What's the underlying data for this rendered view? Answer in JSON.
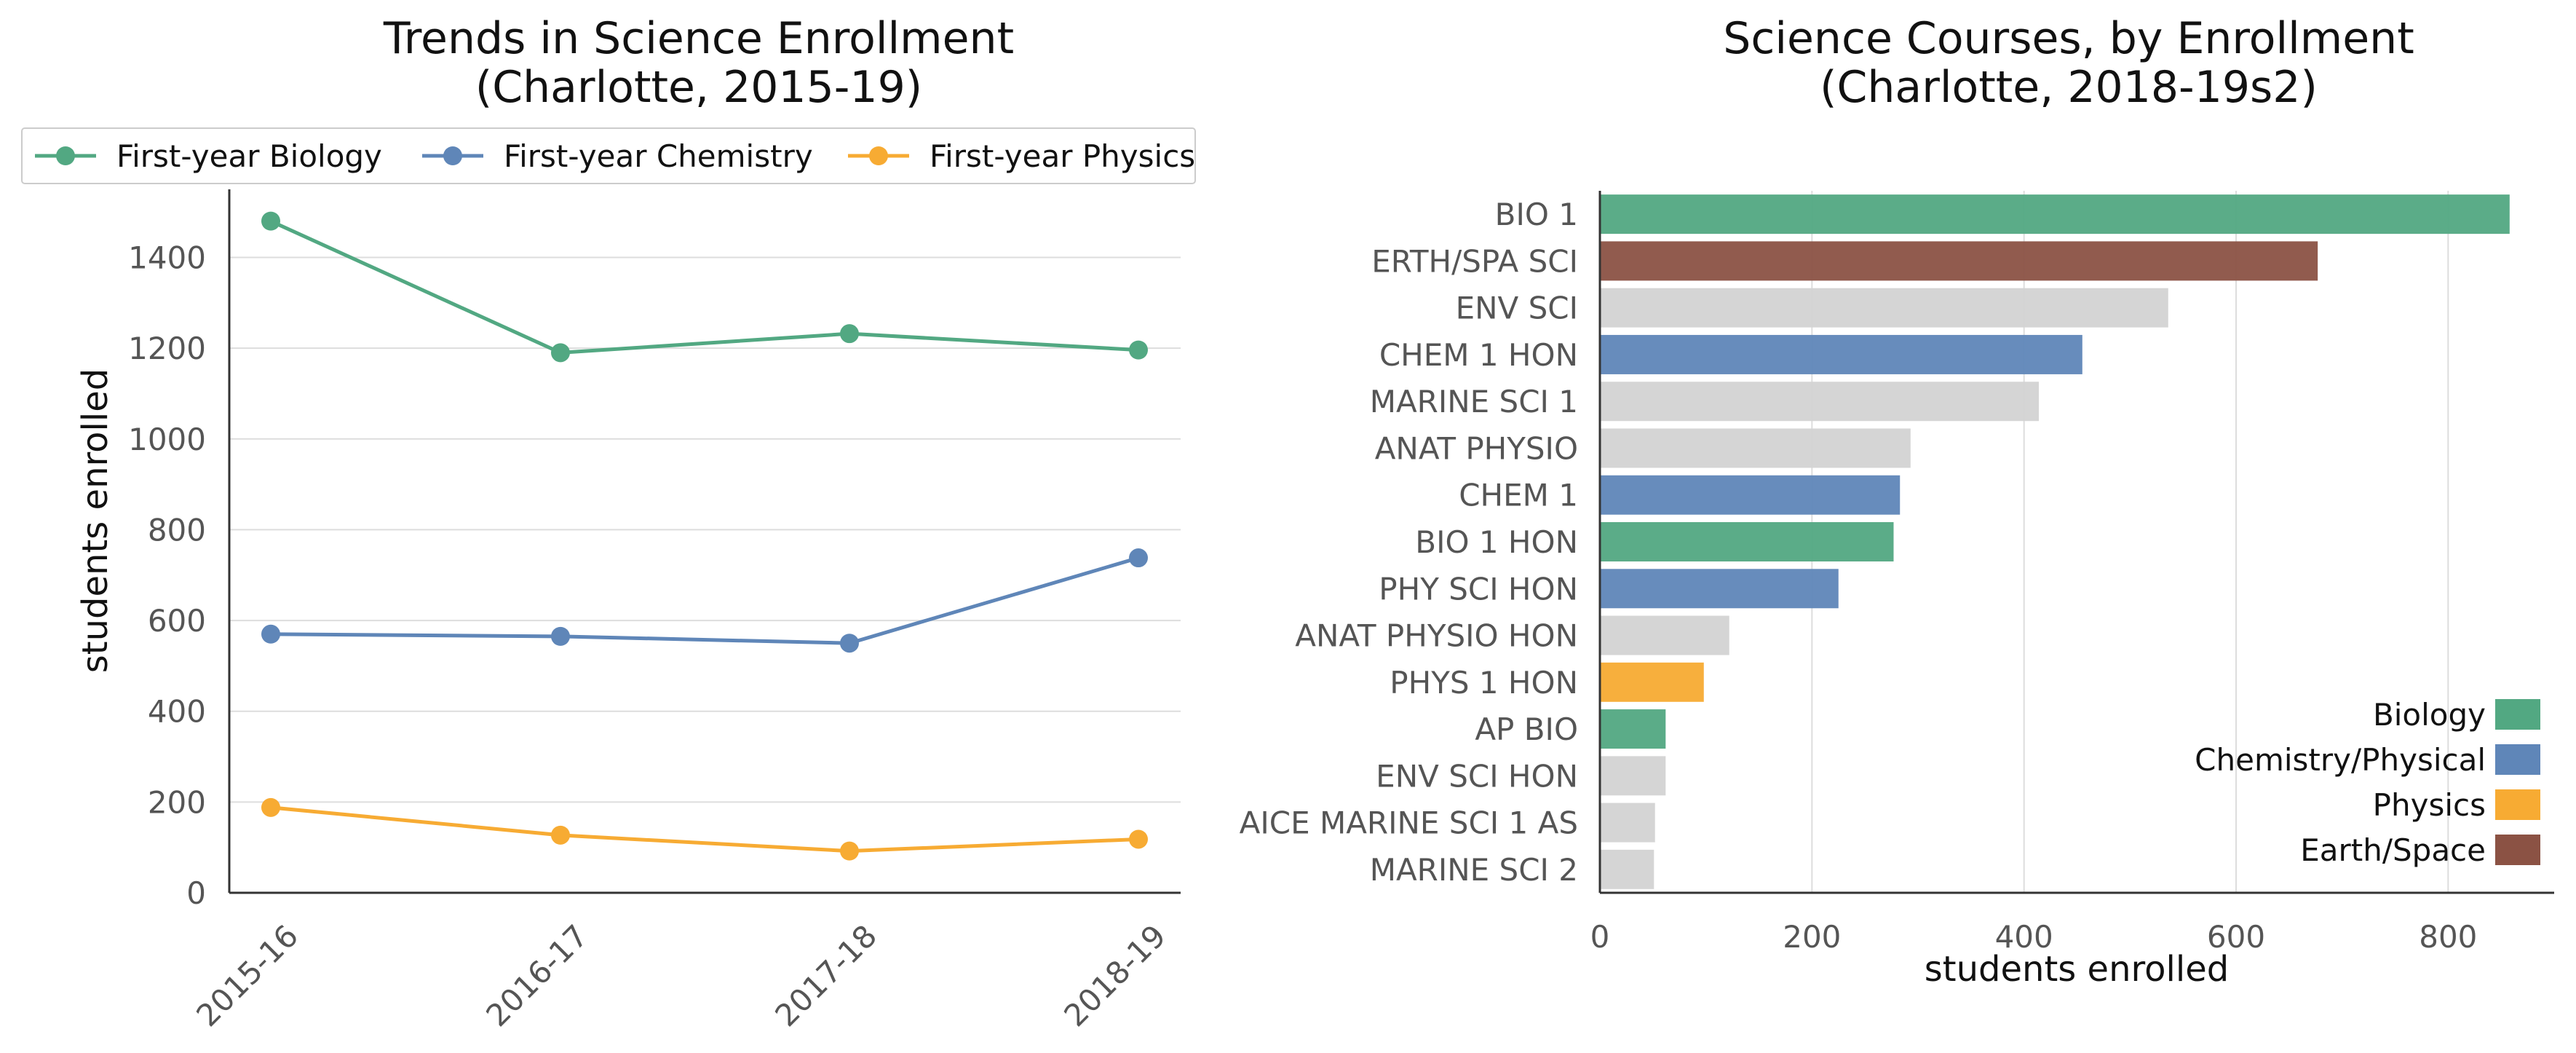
{
  "colors": {
    "biology": "#52a882",
    "chemistry": "#5f86b8",
    "physics": "#f7ab33",
    "earth": "#8b5244",
    "other": "#d3d3d3"
  },
  "chart_data": [
    {
      "type": "line",
      "title_line1": "Trends in Science Enrollment",
      "title_line2": "(Charlotte, 2015-19)",
      "xlabel": "",
      "ylabel": "students enrolled",
      "categories": [
        "2015-16",
        "2016-17",
        "2017-18",
        "2018-19"
      ],
      "ylim": [
        0,
        1550
      ],
      "yticks": [
        0,
        200,
        400,
        600,
        800,
        1000,
        1200,
        1400
      ],
      "grid": true,
      "legend_position": "top",
      "series": [
        {
          "name": "First-year Biology",
          "color_key": "biology",
          "values": [
            1480,
            1190,
            1232,
            1196
          ]
        },
        {
          "name": "First-year Chemistry",
          "color_key": "chemistry",
          "values": [
            570,
            565,
            550,
            738
          ]
        },
        {
          "name": "First-year Physics",
          "color_key": "physics",
          "values": [
            188,
            127,
            92,
            118
          ]
        }
      ]
    },
    {
      "type": "bar",
      "orientation": "horizontal",
      "title_line1": "Science Courses, by Enrollment",
      "title_line2": "(Charlotte, 2018-19s2)",
      "xlabel": "students enrolled",
      "ylabel": "",
      "xlim": [
        0,
        900
      ],
      "xticks": [
        0,
        200,
        400,
        600,
        800
      ],
      "grid": true,
      "legend_position": "bottom-right",
      "categories": [
        "BIO 1",
        "ERTH/SPA SCI",
        "ENV SCI",
        "CHEM 1 HON",
        "MARINE SCI 1",
        "ANAT PHYSIO",
        "CHEM 1",
        "BIO 1 HON",
        "PHY SCI HON",
        "ANAT PHYSIO HON",
        "PHYS 1 HON",
        "AP BIO",
        "ENV SCI HON",
        "AICE MARINE SCI 1 AS",
        "MARINE SCI 2"
      ],
      "values": [
        858,
        677,
        536,
        455,
        414,
        293,
        283,
        277,
        225,
        122,
        98,
        62,
        62,
        52,
        51
      ],
      "color_keys": [
        "biology",
        "earth",
        "other",
        "chemistry",
        "other",
        "other",
        "chemistry",
        "biology",
        "chemistry",
        "other",
        "physics",
        "biology",
        "other",
        "other",
        "other"
      ],
      "legend": [
        {
          "name": "Biology",
          "color_key": "biology"
        },
        {
          "name": "Chemistry/Physical",
          "color_key": "chemistry"
        },
        {
          "name": "Physics",
          "color_key": "physics"
        },
        {
          "name": "Earth/Space",
          "color_key": "earth"
        }
      ]
    }
  ]
}
